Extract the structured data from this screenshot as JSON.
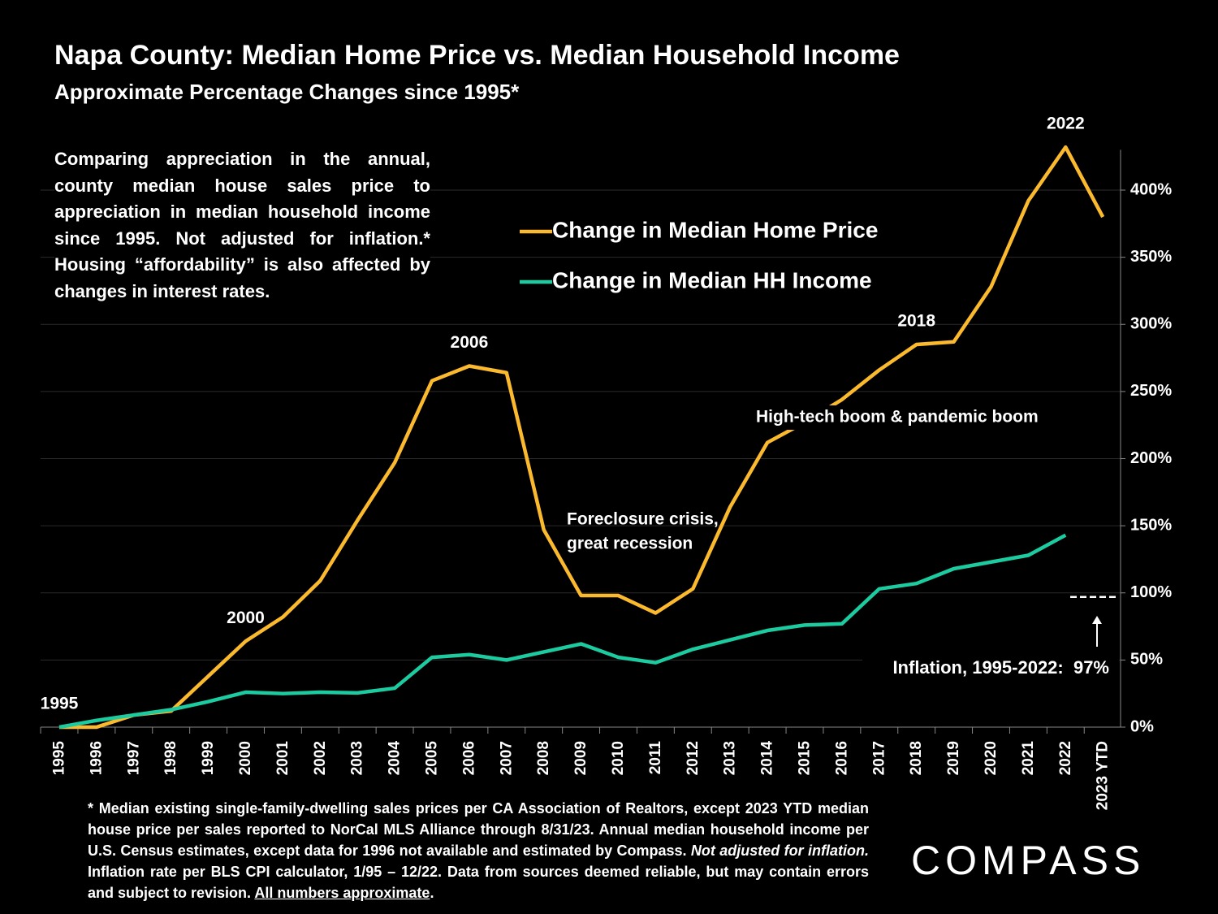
{
  "chart_data": {
    "type": "line",
    "title": "Napa County: Median Home Price vs. Median Household Income",
    "subtitle": "Approximate Percentage Changes since 1995*",
    "description": "Comparing appreciation in the annual, county median house sales price to appreciation in median household income since 1995. Not adjusted for inflation.* Housing “affordability” is also affected by changes in interest rates.",
    "categories": [
      "1995",
      "1996",
      "1997",
      "1998",
      "1999",
      "2000",
      "2001",
      "2002",
      "2003",
      "2004",
      "2005",
      "2006",
      "2007",
      "2008",
      "2009",
      "2010",
      "2011",
      "2012",
      "2013",
      "2014",
      "2015",
      "2016",
      "2017",
      "2018",
      "2019",
      "2020",
      "2021",
      "2022",
      "2023 YTD"
    ],
    "series": [
      {
        "name": "Change in Median Home Price",
        "color": "#fbb92e",
        "values": [
          0,
          0,
          9,
          12,
          38,
          64,
          82,
          109,
          154,
          197,
          258,
          269,
          264,
          147,
          98,
          98,
          85,
          103,
          164,
          212,
          227,
          244,
          266,
          285,
          287,
          328,
          392,
          432,
          380
        ]
      },
      {
        "name": "Change in Median HH Income",
        "color": "#1ccb9f",
        "values": [
          0,
          5,
          9,
          13,
          19,
          26,
          25,
          26,
          25.5,
          29,
          52,
          54,
          50,
          56,
          62,
          52,
          48,
          58,
          65,
          72,
          76,
          77,
          103,
          107,
          118,
          123,
          128,
          143,
          null
        ]
      }
    ],
    "ylim": [
      0,
      430
    ],
    "yticks": [
      {
        "value": 0,
        "label": "0%"
      },
      {
        "value": 50,
        "label": "50%"
      },
      {
        "value": 100,
        "label": "100%"
      },
      {
        "value": 150,
        "label": "150%"
      },
      {
        "value": 200,
        "label": "200%"
      },
      {
        "value": 250,
        "label": "250%"
      },
      {
        "value": 300,
        "label": "300%"
      },
      {
        "value": 350,
        "label": "350%"
      },
      {
        "value": 400,
        "label": "400%"
      }
    ],
    "grid": true,
    "point_labels": [
      "1995",
      "2000",
      "2006",
      "2018",
      "2022"
    ],
    "annotations": [
      "Foreclosure crisis,",
      "great recession",
      "High-tech boom & pandemic boom"
    ],
    "inflation": {
      "value": 97,
      "label": "Inflation, 1995-2022:  97%"
    },
    "footnote": [
      "* Median existing single-family-dwelling sales prices per CA Association of Realtors, except 2023 YTD median house price per sales reported to NorCal MLS Alliance through 8/31/23. Annual median household income per U.S. Census estimates, except data for 1996 not available and estimated by Compass. ",
      "Not adjusted for inflation.",
      " Inflation rate per BLS CPI calculator, 1/95 – 12/22. Data from sources deemed reliable, but may contain errors and subject to revision. ",
      "All numbers approximate",
      "."
    ],
    "logo": "COMPASS"
  }
}
